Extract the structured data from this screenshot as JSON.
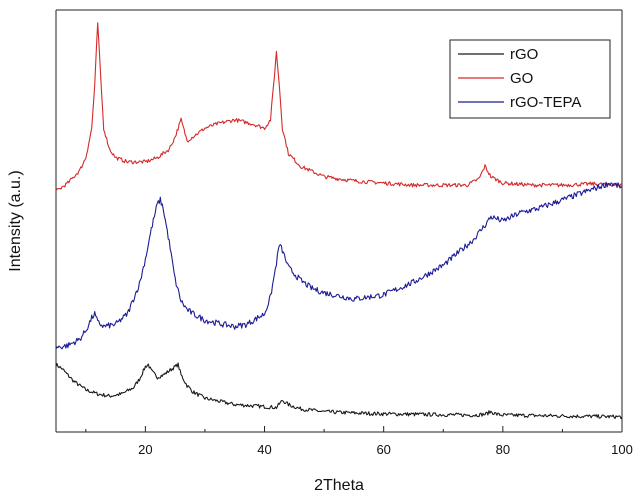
{
  "chart_data": {
    "type": "line",
    "xlabel": "2Theta",
    "ylabel": "Intensity (a.u.)",
    "xlim": [
      5,
      100
    ],
    "ylim": [
      0,
      100
    ],
    "x_ticks": [
      20,
      40,
      60,
      80,
      100
    ],
    "y_ticks": [],
    "grid": false,
    "legend_position": "top-right",
    "series": [
      {
        "name": "rGO",
        "color": "#1a1a1a",
        "x": [
          5,
          6,
          8,
          10,
          12,
          14,
          16,
          18,
          19,
          20,
          20.5,
          21,
          22,
          23,
          24,
          25,
          25.5,
          26,
          27,
          28,
          30,
          35,
          40,
          42,
          43,
          44,
          46,
          50,
          55,
          60,
          65,
          70,
          75,
          77,
          78,
          79,
          80,
          85,
          90,
          95,
          100
        ],
        "y": [
          16,
          15,
          12,
          10,
          9,
          8.5,
          9,
          10.5,
          12.5,
          15.5,
          16,
          14.5,
          13,
          13.5,
          14.5,
          15.5,
          16,
          13.5,
          11,
          9.5,
          8,
          6.5,
          6,
          5.8,
          7.5,
          6.5,
          5.5,
          4.8,
          4.5,
          4.3,
          4.2,
          4.1,
          4.0,
          4.2,
          4.8,
          4.2,
          4.0,
          3.9,
          3.8,
          3.7,
          3.6
        ]
      },
      {
        "name": "GO",
        "color": "#d42a2a",
        "x": [
          5,
          7,
          9,
          10,
          11,
          11.5,
          12,
          12.5,
          13,
          14,
          15,
          17,
          20,
          22,
          24,
          25,
          26,
          27,
          28,
          30,
          32,
          35,
          38,
          40,
          41,
          41.5,
          42,
          42.5,
          43,
          44,
          46,
          50,
          55,
          60,
          65,
          70,
          74,
          76,
          77,
          78,
          80,
          85,
          90,
          95,
          100
        ],
        "y": [
          57,
          59,
          62,
          65,
          72,
          82,
          97,
          84,
          72,
          67,
          65,
          64,
          64,
          65,
          67,
          70,
          74,
          69,
          70,
          72,
          73,
          74,
          73,
          72,
          74,
          82,
          90,
          82,
          72,
          66,
          63,
          60.5,
          59.5,
          59,
          58.5,
          58.5,
          58.5,
          60,
          63,
          60.5,
          59,
          58.5,
          58.5,
          58.8,
          58.5
        ]
      },
      {
        "name": "rGO-TEPA",
        "color": "#1c1c96",
        "x": [
          5,
          7,
          9,
          10,
          11,
          11.5,
          12,
          13,
          15,
          17,
          19,
          20,
          21,
          22,
          22.5,
          23,
          24,
          25,
          26,
          27,
          28,
          30,
          33,
          35,
          37,
          40,
          41,
          42,
          42.5,
          43,
          44,
          46,
          48,
          50,
          55,
          60,
          65,
          70,
          75,
          77,
          78,
          80,
          83,
          86,
          90,
          95,
          98,
          100
        ],
        "y": [
          20,
          20.5,
          22,
          24,
          27,
          28,
          26,
          25,
          25.5,
          28,
          35,
          41,
          48,
          54,
          55,
          53,
          45,
          36,
          31,
          29,
          28,
          26.5,
          25.5,
          25,
          25.5,
          28,
          32,
          40,
          44.5,
          43,
          39,
          36,
          34,
          33,
          31.5,
          32.5,
          35.5,
          39.5,
          45.5,
          49,
          51,
          50,
          52,
          53,
          55,
          57.5,
          59,
          58
        ]
      }
    ]
  }
}
